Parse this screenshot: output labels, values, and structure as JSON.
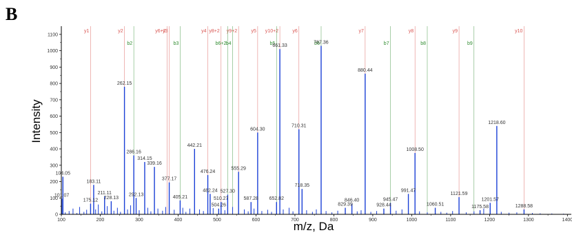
{
  "panel_label": "B",
  "chart_data": {
    "type": "bar",
    "xlabel": "m/z, Da",
    "ylabel": "Intensity",
    "xlim": [
      100,
      1410
    ],
    "ylim": [
      0,
      1150
    ],
    "x_ticks": [
      100,
      200,
      300,
      400,
      500,
      600,
      700,
      800,
      900,
      1000,
      1100,
      1200,
      1300,
      1400
    ],
    "y_ticks": [
      0,
      100,
      200,
      300,
      400,
      500,
      600,
      700,
      800,
      900,
      1000,
      1100
    ],
    "colors": {
      "peaks": "#1a3fd6",
      "y_ions": "#d9534f",
      "b_ions": "#2e8b2e",
      "frame": "#000000"
    },
    "labeled_peaks": [
      {
        "mz": 101.07,
        "intensity": 95,
        "label": "101.07"
      },
      {
        "mz": 104.05,
        "intensity": 230,
        "label": "104.05"
      },
      {
        "mz": 175.12,
        "intensity": 65,
        "label": "175.12"
      },
      {
        "mz": 183.11,
        "intensity": 180,
        "label": "183.11"
      },
      {
        "mz": 211.11,
        "intensity": 110,
        "label": "211.11"
      },
      {
        "mz": 228.13,
        "intensity": 80,
        "label": "228.13"
      },
      {
        "mz": 262.15,
        "intensity": 780,
        "label": "262.15"
      },
      {
        "mz": 286.16,
        "intensity": 360,
        "label": "286.16"
      },
      {
        "mz": 292.13,
        "intensity": 100,
        "label": "292.13"
      },
      {
        "mz": 314.15,
        "intensity": 320,
        "label": "314.15"
      },
      {
        "mz": 339.16,
        "intensity": 290,
        "label": "339.16"
      },
      {
        "mz": 377.17,
        "intensity": 195,
        "label": "377.17"
      },
      {
        "mz": 405.21,
        "intensity": 85,
        "label": "405.21"
      },
      {
        "mz": 442.21,
        "intensity": 400,
        "label": "442.21"
      },
      {
        "mz": 476.24,
        "intensity": 240,
        "label": "476.24"
      },
      {
        "mz": 482.24,
        "intensity": 125,
        "label": "482.24"
      },
      {
        "mz": 504.26,
        "intensity": 35,
        "label": "504.26"
      },
      {
        "mz": 510.27,
        "intensity": 75,
        "label": "510.27"
      },
      {
        "mz": 527.3,
        "intensity": 120,
        "label": "527.30"
      },
      {
        "mz": 555.29,
        "intensity": 260,
        "label": "555.29"
      },
      {
        "mz": 587.28,
        "intensity": 75,
        "label": "587.28"
      },
      {
        "mz": 604.3,
        "intensity": 500,
        "label": "604.30"
      },
      {
        "mz": 652.82,
        "intensity": 75,
        "label": "652.82"
      },
      {
        "mz": 661.33,
        "intensity": 1010,
        "label": "661.33"
      },
      {
        "mz": 710.31,
        "intensity": 520,
        "label": "710.31"
      },
      {
        "mz": 718.35,
        "intensity": 155,
        "label": "718.35"
      },
      {
        "mz": 767.36,
        "intensity": 1030,
        "label": "767.36"
      },
      {
        "mz": 829.39,
        "intensity": 40,
        "label": "829.39"
      },
      {
        "mz": 846.4,
        "intensity": 65,
        "label": "846.40"
      },
      {
        "mz": 880.44,
        "intensity": 860,
        "label": "880.44"
      },
      {
        "mz": 928.44,
        "intensity": 35,
        "label": "928.44"
      },
      {
        "mz": 945.47,
        "intensity": 70,
        "label": "945.47"
      },
      {
        "mz": 991.47,
        "intensity": 125,
        "label": "991.47"
      },
      {
        "mz": 1008.5,
        "intensity": 375,
        "label": "1008.50"
      },
      {
        "mz": 1060.51,
        "intensity": 40,
        "label": "1060.51"
      },
      {
        "mz": 1121.59,
        "intensity": 105,
        "label": "1121.59"
      },
      {
        "mz": 1175.58,
        "intensity": 25,
        "label": "1175.58"
      },
      {
        "mz": 1201.57,
        "intensity": 70,
        "label": "1201.57"
      },
      {
        "mz": 1218.6,
        "intensity": 540,
        "label": "1218.60"
      },
      {
        "mz": 1288.58,
        "intensity": 30,
        "label": "1288.58"
      }
    ],
    "minor_peaks": [
      {
        "mz": 110,
        "intensity": 12
      },
      {
        "mz": 120,
        "intensity": 20
      },
      {
        "mz": 130,
        "intensity": 35
      },
      {
        "mz": 140,
        "intensity": 8
      },
      {
        "mz": 147,
        "intensity": 45
      },
      {
        "mz": 158,
        "intensity": 15
      },
      {
        "mz": 165,
        "intensity": 28
      },
      {
        "mz": 188,
        "intensity": 30
      },
      {
        "mz": 195,
        "intensity": 60
      },
      {
        "mz": 204,
        "intensity": 18
      },
      {
        "mz": 218,
        "intensity": 50
      },
      {
        "mz": 235,
        "intensity": 22
      },
      {
        "mz": 244,
        "intensity": 40
      },
      {
        "mz": 252,
        "intensity": 15
      },
      {
        "mz": 270,
        "intensity": 30
      },
      {
        "mz": 278,
        "intensity": 55
      },
      {
        "mz": 300,
        "intensity": 25
      },
      {
        "mz": 322,
        "intensity": 40
      },
      {
        "mz": 330,
        "intensity": 18
      },
      {
        "mz": 348,
        "intensity": 35
      },
      {
        "mz": 360,
        "intensity": 22
      },
      {
        "mz": 368,
        "intensity": 45
      },
      {
        "mz": 390,
        "intensity": 28
      },
      {
        "mz": 412,
        "intensity": 40
      },
      {
        "mz": 420,
        "intensity": 15
      },
      {
        "mz": 430,
        "intensity": 35
      },
      {
        "mz": 455,
        "intensity": 30
      },
      {
        "mz": 465,
        "intensity": 20
      },
      {
        "mz": 490,
        "intensity": 38
      },
      {
        "mz": 520,
        "intensity": 25
      },
      {
        "mz": 540,
        "intensity": 45
      },
      {
        "mz": 570,
        "intensity": 30
      },
      {
        "mz": 580,
        "intensity": 18
      },
      {
        "mz": 595,
        "intensity": 35
      },
      {
        "mz": 615,
        "intensity": 20
      },
      {
        "mz": 630,
        "intensity": 28
      },
      {
        "mz": 640,
        "intensity": 15
      },
      {
        "mz": 670,
        "intensity": 30
      },
      {
        "mz": 685,
        "intensity": 40
      },
      {
        "mz": 695,
        "intensity": 18
      },
      {
        "mz": 730,
        "intensity": 25
      },
      {
        "mz": 745,
        "intensity": 15
      },
      {
        "mz": 755,
        "intensity": 30
      },
      {
        "mz": 780,
        "intensity": 20
      },
      {
        "mz": 795,
        "intensity": 12
      },
      {
        "mz": 810,
        "intensity": 22
      },
      {
        "mz": 860,
        "intensity": 18
      },
      {
        "mz": 870,
        "intensity": 25
      },
      {
        "mz": 895,
        "intensity": 15
      },
      {
        "mz": 910,
        "intensity": 20
      },
      {
        "mz": 960,
        "intensity": 22
      },
      {
        "mz": 975,
        "intensity": 30
      },
      {
        "mz": 1020,
        "intensity": 18
      },
      {
        "mz": 1040,
        "intensity": 12
      },
      {
        "mz": 1075,
        "intensity": 15
      },
      {
        "mz": 1090,
        "intensity": 10
      },
      {
        "mz": 1105,
        "intensity": 20
      },
      {
        "mz": 1140,
        "intensity": 12
      },
      {
        "mz": 1160,
        "intensity": 18
      },
      {
        "mz": 1185,
        "intensity": 35
      },
      {
        "mz": 1230,
        "intensity": 15
      },
      {
        "mz": 1250,
        "intensity": 10
      },
      {
        "mz": 1270,
        "intensity": 12
      },
      {
        "mz": 1310,
        "intensity": 8
      },
      {
        "mz": 1330,
        "intensity": 6
      },
      {
        "mz": 1360,
        "intensity": 5
      },
      {
        "mz": 1390,
        "intensity": 4
      }
    ],
    "y_ions": [
      {
        "label": "y1",
        "mz": 175.12
      },
      {
        "label": "y2",
        "mz": 262.15
      },
      {
        "label": "y3",
        "mz": 377.17
      },
      {
        "label": "y6+2",
        "mz": 372
      },
      {
        "label": "y4",
        "mz": 476.24
      },
      {
        "label": "y8+2",
        "mz": 510.27
      },
      {
        "label": "y9+2",
        "mz": 555.29
      },
      {
        "label": "y5",
        "mz": 604.3
      },
      {
        "label": "y10+2",
        "mz": 661.33
      },
      {
        "label": "y6",
        "mz": 710.31
      },
      {
        "label": "y7",
        "mz": 880.44
      },
      {
        "label": "y8",
        "mz": 1008.5
      },
      {
        "label": "y9",
        "mz": 1121.59
      },
      {
        "label": "y10",
        "mz": 1288.58
      }
    ],
    "b_ions": [
      {
        "label": "b2",
        "mz": 286.16
      },
      {
        "label": "b3",
        "mz": 405.21
      },
      {
        "label": "b6+2",
        "mz": 527.3
      },
      {
        "label": "b4",
        "mz": 540
      },
      {
        "label": "b5",
        "mz": 652.82
      },
      {
        "label": "b6",
        "mz": 767.36
      },
      {
        "label": "b7",
        "mz": 945.47
      },
      {
        "label": "b8",
        "mz": 1040
      },
      {
        "label": "b9",
        "mz": 1160
      }
    ]
  }
}
